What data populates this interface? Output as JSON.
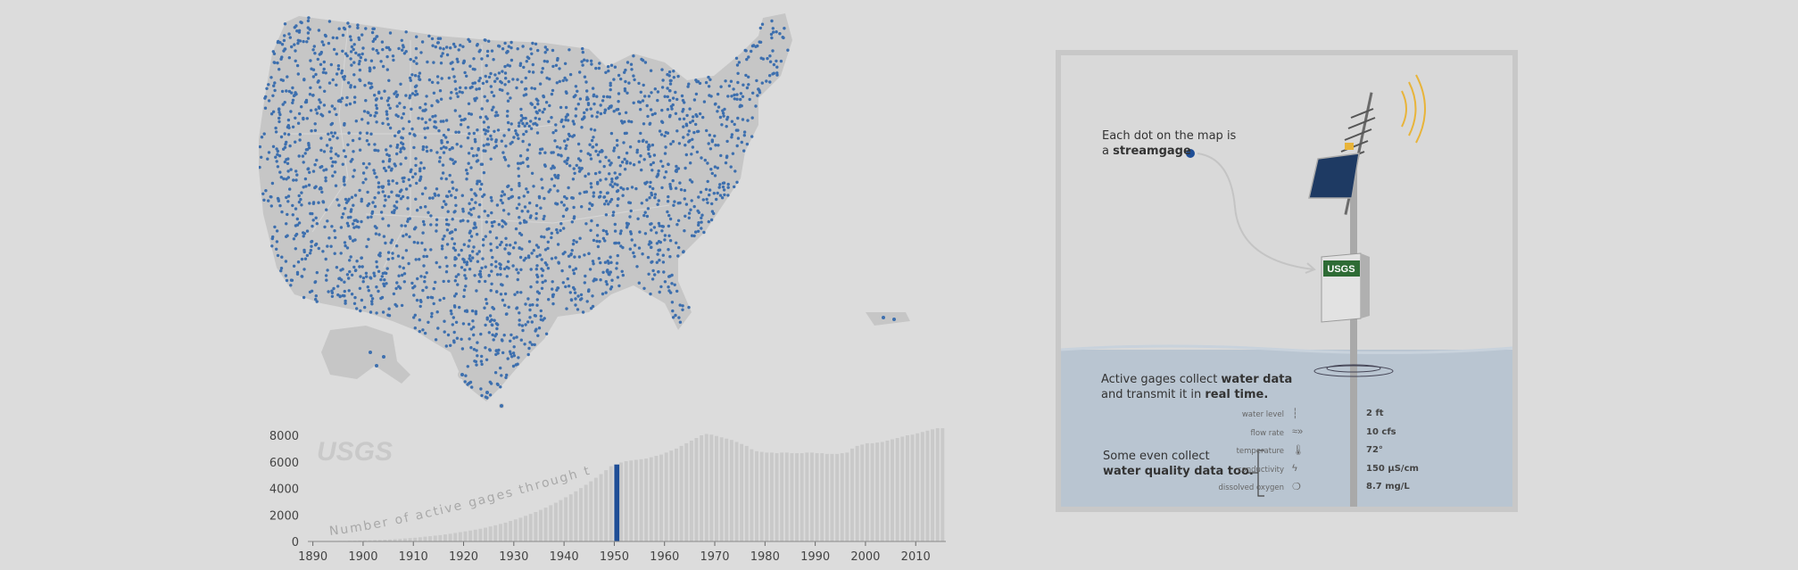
{
  "timeline": {
    "watermark": "USGS",
    "caption": "Number of active gages through time",
    "selected_year": 1950,
    "highlight_color": "#1f4e96"
  },
  "map": {
    "dot_color": "#3d6fae",
    "land_color": "#c6c6c6"
  },
  "panel": {
    "intro_line1": "Each dot on the map is",
    "intro_line2_prefix": "a ",
    "intro_line2_bold": "streamgage",
    "box_logo": "USGS",
    "active_line1_prefix": "Active gages collect ",
    "active_line1_bold": "water data",
    "active_line2_prefix": "and transmit it in ",
    "active_line2_bold": "real time.",
    "quality_line1": "Some even collect",
    "quality_line2_bold": "water quality data too.",
    "measurements": [
      {
        "label": "water level",
        "icon": "ruler-icon",
        "glyph": "┆",
        "value": "2 ft"
      },
      {
        "label": "flow rate",
        "icon": "flow-icon",
        "glyph": "≈»",
        "value": "10 cfs"
      },
      {
        "label": "temperature",
        "icon": "thermometer-icon",
        "glyph": "🌡",
        "value": "72°"
      },
      {
        "label": "conductivity",
        "icon": "lightning-icon",
        "glyph": "ϟ",
        "value": "150 μS/cm"
      },
      {
        "label": "dissolved oxygen",
        "icon": "oxygen-icon",
        "glyph": "❍",
        "value": "8.7 mg/L"
      }
    ],
    "accent_signal": "#e8b43a",
    "sign_green": "#2e6b35",
    "water_color": "#b9c5d1"
  },
  "chart_data": {
    "type": "bar",
    "title": "Number of active gages through time",
    "xlabel": "",
    "ylabel": "",
    "ylim": [
      0,
      8000
    ],
    "yticks": [
      0,
      2000,
      4000,
      6000,
      8000
    ],
    "xticks": [
      1890,
      1900,
      1910,
      1920,
      1930,
      1940,
      1950,
      1960,
      1970,
      1980,
      1990,
      2000,
      2010
    ],
    "highlight": 1950,
    "x_start": 1889,
    "values": [
      10,
      15,
      20,
      25,
      30,
      35,
      40,
      45,
      55,
      60,
      70,
      80,
      90,
      100,
      110,
      130,
      150,
      170,
      190,
      220,
      250,
      280,
      320,
      360,
      400,
      440,
      480,
      530,
      580,
      640,
      700,
      760,
      820,
      890,
      960,
      1040,
      1130,
      1220,
      1320,
      1420,
      1540,
      1660,
      1790,
      1930,
      2070,
      2220,
      2380,
      2550,
      2730,
      2920,
      3120,
      3330,
      3550,
      3780,
      4020,
      4270,
      4530,
      4800,
      5080,
      5370,
      5670,
      5800,
      5950,
      6050,
      6100,
      6150,
      6200,
      6250,
      6350,
      6450,
      6550,
      6700,
      6850,
      7000,
      7200,
      7400,
      7600,
      7800,
      8000,
      8100,
      8050,
      7950,
      7850,
      7750,
      7650,
      7500,
      7350,
      7200,
      6950,
      6800,
      6750,
      6700,
      6700,
      6650,
      6700,
      6700,
      6650,
      6650,
      6650,
      6700,
      6700,
      6650,
      6650,
      6600,
      6600,
      6600,
      6650,
      6700,
      7000,
      7200,
      7300,
      7400,
      7400,
      7450,
      7500,
      7600,
      7700,
      7800,
      7900,
      8000,
      8050,
      8150,
      8250,
      8350,
      8450,
      8550,
      8650
    ]
  }
}
